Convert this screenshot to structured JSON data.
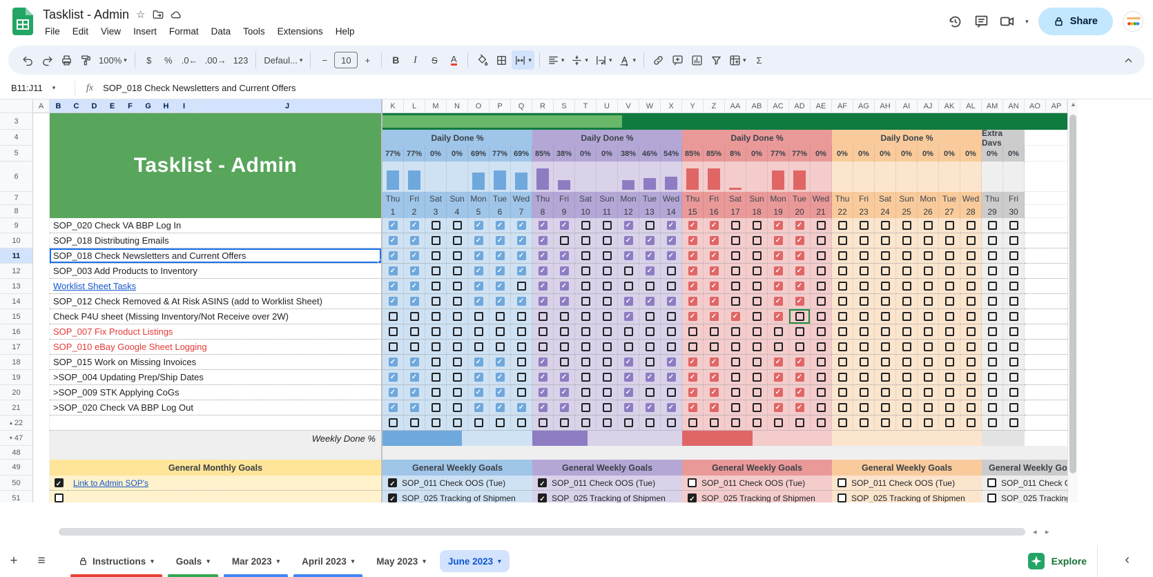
{
  "header": {
    "title": "Tasklist - Admin",
    "doc_icons": [
      "star-icon",
      "move-folder-icon",
      "cloud-saved-icon"
    ],
    "menus": [
      "File",
      "Edit",
      "View",
      "Insert",
      "Format",
      "Data",
      "Tools",
      "Extensions",
      "Help"
    ],
    "right_icons": [
      "history-icon",
      "comments-icon",
      "video-call-icon"
    ],
    "share_label": "Share"
  },
  "toolbar": {
    "zoom_value": "100%",
    "font_name": "Defaul...",
    "font_size": "10",
    "items": [
      {
        "icon": "undo"
      },
      {
        "icon": "redo"
      },
      {
        "icon": "print"
      },
      {
        "icon": "paint-format"
      },
      {
        "text": "100%",
        "caret": true,
        "name": "zoom-select"
      },
      {
        "divider": true
      },
      {
        "text": "$",
        "name": "currency-format"
      },
      {
        "text": "%",
        "name": "percent-format"
      },
      {
        "text": ".0←",
        "name": "decrease-decimals"
      },
      {
        "text": ".00→",
        "name": "increase-decimals"
      },
      {
        "text": "123",
        "name": "more-formats"
      },
      {
        "divider": true
      },
      {
        "text": "Defaul...",
        "caret": true,
        "name": "font-family-select"
      },
      {
        "divider": true
      },
      {
        "text": "−",
        "name": "decrease-font-size"
      },
      {
        "sizebox": "10"
      },
      {
        "text": "+",
        "name": "increase-font-size"
      },
      {
        "divider": true
      },
      {
        "text": "B",
        "cls": "tb-b",
        "name": "bold"
      },
      {
        "text": "I",
        "cls": "tb-i",
        "name": "italic"
      },
      {
        "text": "S",
        "cls": "tb-s",
        "name": "strikethrough"
      },
      {
        "text": "A",
        "cls": "tb-a",
        "name": "text-color"
      },
      {
        "divider": true
      },
      {
        "icon": "fill-color"
      },
      {
        "icon": "borders"
      },
      {
        "icon": "merge-cells",
        "active": true,
        "caret": true
      },
      {
        "divider": true
      },
      {
        "icon": "horizontal-align",
        "caret": true
      },
      {
        "icon": "vertical-align",
        "caret": true
      },
      {
        "icon": "text-wrap",
        "caret": true
      },
      {
        "icon": "text-rotation",
        "caret": true
      },
      {
        "divider": true
      },
      {
        "icon": "insert-link"
      },
      {
        "icon": "insert-comment"
      },
      {
        "icon": "insert-chart"
      },
      {
        "icon": "create-filter"
      },
      {
        "icon": "table-views",
        "caret": true
      },
      {
        "text": "Σ",
        "name": "functions"
      }
    ]
  },
  "formula_bar": {
    "range": "B11:J11",
    "fx_label": "fx",
    "content": "SOP_018 Check Newsletters and Current Offers"
  },
  "grid": {
    "left_col_letters": [
      "A",
      "B",
      "C",
      "D",
      "E",
      "F",
      "G",
      "H",
      "I",
      "J"
    ],
    "day_col_letters": [
      "K",
      "L",
      "M",
      "N",
      "O",
      "P",
      "Q",
      "R",
      "S",
      "T",
      "U",
      "V",
      "W",
      "X",
      "Y",
      "Z",
      "AA",
      "AB",
      "AC",
      "AD",
      "AE",
      "AF",
      "AG",
      "AH",
      "AI",
      "AJ",
      "AK",
      "AL",
      "AM",
      "AN",
      "AO",
      "AP"
    ],
    "selected_range_cols": [
      "B",
      "C",
      "D",
      "E",
      "F",
      "G",
      "H",
      "I",
      "J"
    ],
    "selected_row": 11,
    "title_cell": "Tasklist - Admin",
    "title_cell_color": "#58a55c",
    "monthly_bar": {
      "dark": "#0f7b3f",
      "light": "#69b769",
      "progress_pct": 35
    },
    "daily_done_label": "Daily Done %",
    "extra_days_label": "Extra Days",
    "weeks": [
      {
        "label": "Daily Done %",
        "header": "#9fc5e8",
        "cell": "#cfe2f3",
        "accent": "#6fa8dc",
        "days": [
          "Thu",
          "Fri",
          "Sat",
          "Sun",
          "Mon",
          "Tue",
          "Wed"
        ],
        "dates": [
          1,
          2,
          3,
          4,
          5,
          6,
          7
        ],
        "daily_pct": [
          77,
          77,
          0,
          0,
          69,
          77,
          69
        ],
        "weekly_pct": 53
      },
      {
        "label": "Daily Done %",
        "header": "#b4a7d6",
        "cell": "#d9d2e9",
        "accent": "#8e7cc3",
        "days": [
          "Thu",
          "Fri",
          "Sat",
          "Sun",
          "Mon",
          "Tue",
          "Wed"
        ],
        "dates": [
          8,
          9,
          10,
          11,
          12,
          13,
          14
        ],
        "daily_pct": [
          85,
          38,
          0,
          0,
          38,
          46,
          54
        ],
        "weekly_pct": 37
      },
      {
        "label": "Daily Done %",
        "header": "#ea9999",
        "cell": "#f4cccc",
        "accent": "#e06666",
        "days": [
          "Thu",
          "Fri",
          "Sat",
          "Sun",
          "Mon",
          "Tue",
          "Wed"
        ],
        "dates": [
          15,
          16,
          17,
          18,
          19,
          20,
          21
        ],
        "daily_pct": [
          85,
          85,
          8,
          0,
          77,
          77,
          0
        ],
        "weekly_pct": 47
      },
      {
        "label": "Daily Done %",
        "header": "#f9cb9c",
        "cell": "#fce5cd",
        "accent": "#f6b26b",
        "days": [
          "Thu",
          "Fri",
          "Sat",
          "Sun",
          "Mon",
          "Tue",
          "Wed"
        ],
        "dates": [
          22,
          23,
          24,
          25,
          26,
          27,
          28
        ],
        "daily_pct": [
          0,
          0,
          0,
          0,
          0,
          0,
          0
        ],
        "weekly_pct": 0
      },
      {
        "label": "Extra Days",
        "header": "#cccccc",
        "cell": "#efefef",
        "accent": "#b7b7b7",
        "days": [
          "Thu",
          "Fri"
        ],
        "dates": [
          29,
          30
        ],
        "daily_pct": [
          0,
          0
        ],
        "weekly_pct": 0
      }
    ],
    "tasks": [
      {
        "row": 9,
        "label": "SOP_020 Check VA BBP Log In",
        "style": "normal",
        "checks": "110011111001011100110000000000"
      },
      {
        "row": 10,
        "label": "SOP_018 Distributing Emails",
        "style": "normal",
        "checks": "110011110001111100110000000000"
      },
      {
        "row": 11,
        "label": "SOP_018 Check Newsletters and Current Offers",
        "style": "normal",
        "checks": "110011111001111100110000000000"
      },
      {
        "row": 12,
        "label": "SOP_003 Add Products to Inventory",
        "style": "normal",
        "checks": "110011111000101100110000000000"
      },
      {
        "row": 13,
        "label": "Worklist Sheet Tasks",
        "style": "link",
        "checks": "110011011000001100110000000000"
      },
      {
        "row": 14,
        "label": "SOP_012 Check Removed & At Risk ASINS (add to Worklist Sheet)",
        "style": "normal",
        "checks": "110011111001111100110000000000"
      },
      {
        "row": 15,
        "label": "Check P4U sheet (Missing Inventory/Not Receive over 2W)",
        "style": "normal",
        "checks": "000000000001001110100000000000"
      },
      {
        "row": 16,
        "label": "SOP_007 Fix Product Listings",
        "style": "red",
        "checks": "000000000000000000000000000000"
      },
      {
        "row": 17,
        "label": "SOP_010 eBay Google Sheet Logging",
        "style": "red",
        "checks": "000000000000000000000000000000"
      },
      {
        "row": 18,
        "label": "SOP_015 Work on Missing Invoices",
        "style": "normal",
        "checks": "110011010001011100110000000000"
      },
      {
        "row": 19,
        "label": ">SOP_004 Updating Prep/Ship Dates",
        "style": "normal",
        "checks": "110011011001111100110000000000"
      },
      {
        "row": 20,
        "label": ">SOP_009 STK Applying CoGs",
        "style": "normal",
        "checks": "110011011001001100110000000000"
      },
      {
        "row": 21,
        "label": ">SOP_020 Check VA BBP Log Out",
        "style": "normal",
        "checks": "110011111001111100110000000000"
      }
    ],
    "blank_row": {
      "row": 22,
      "checks": "000000000000000000000000000000"
    },
    "weekly_done": {
      "row": 47,
      "label": "Weekly Done %"
    },
    "spacer_row": 48,
    "goals_header_row": 49,
    "monthly_goals_label": "General Monthly Goals",
    "weekly_goals_label": "General Weekly Goals",
    "goals_colors": {
      "monthly_header": "#ffe599",
      "monthly_cell": "#fff2cc"
    },
    "goal_rows": [
      {
        "row": 50,
        "monthly_checked": true,
        "monthly_label": "Link to Admin SOP's",
        "monthly_is_link": true,
        "weekly_label": "SOP_011 Check OOS (Tue)",
        "weekly_checked": [
          true,
          true,
          false,
          false,
          false
        ]
      },
      {
        "row": 51,
        "monthly_checked": false,
        "monthly_label": "",
        "monthly_is_link": false,
        "weekly_label": "SOP_025 Tracking of Shipmen",
        "weekly_checked": [
          true,
          true,
          true,
          false,
          false
        ]
      }
    ],
    "collab_cursor": {
      "row": 15,
      "date": 20,
      "color": "#1e8e3e"
    }
  },
  "tabbar": {
    "add_label": "+",
    "all_sheets_label": "≡",
    "tabs": [
      {
        "label": "Instructions",
        "locked": true,
        "color": "#ea4335",
        "active": false
      },
      {
        "label": "Goals",
        "color": "#34a853",
        "active": false
      },
      {
        "label": "Mar 2023",
        "color": "#4285f4",
        "active": false
      },
      {
        "label": "April 2023",
        "color": "#4285f4",
        "active": false
      },
      {
        "label": "May 2023",
        "color": null,
        "active": false
      },
      {
        "label": "June 2023",
        "color": null,
        "active": true
      }
    ],
    "explore_label": "Explore"
  }
}
